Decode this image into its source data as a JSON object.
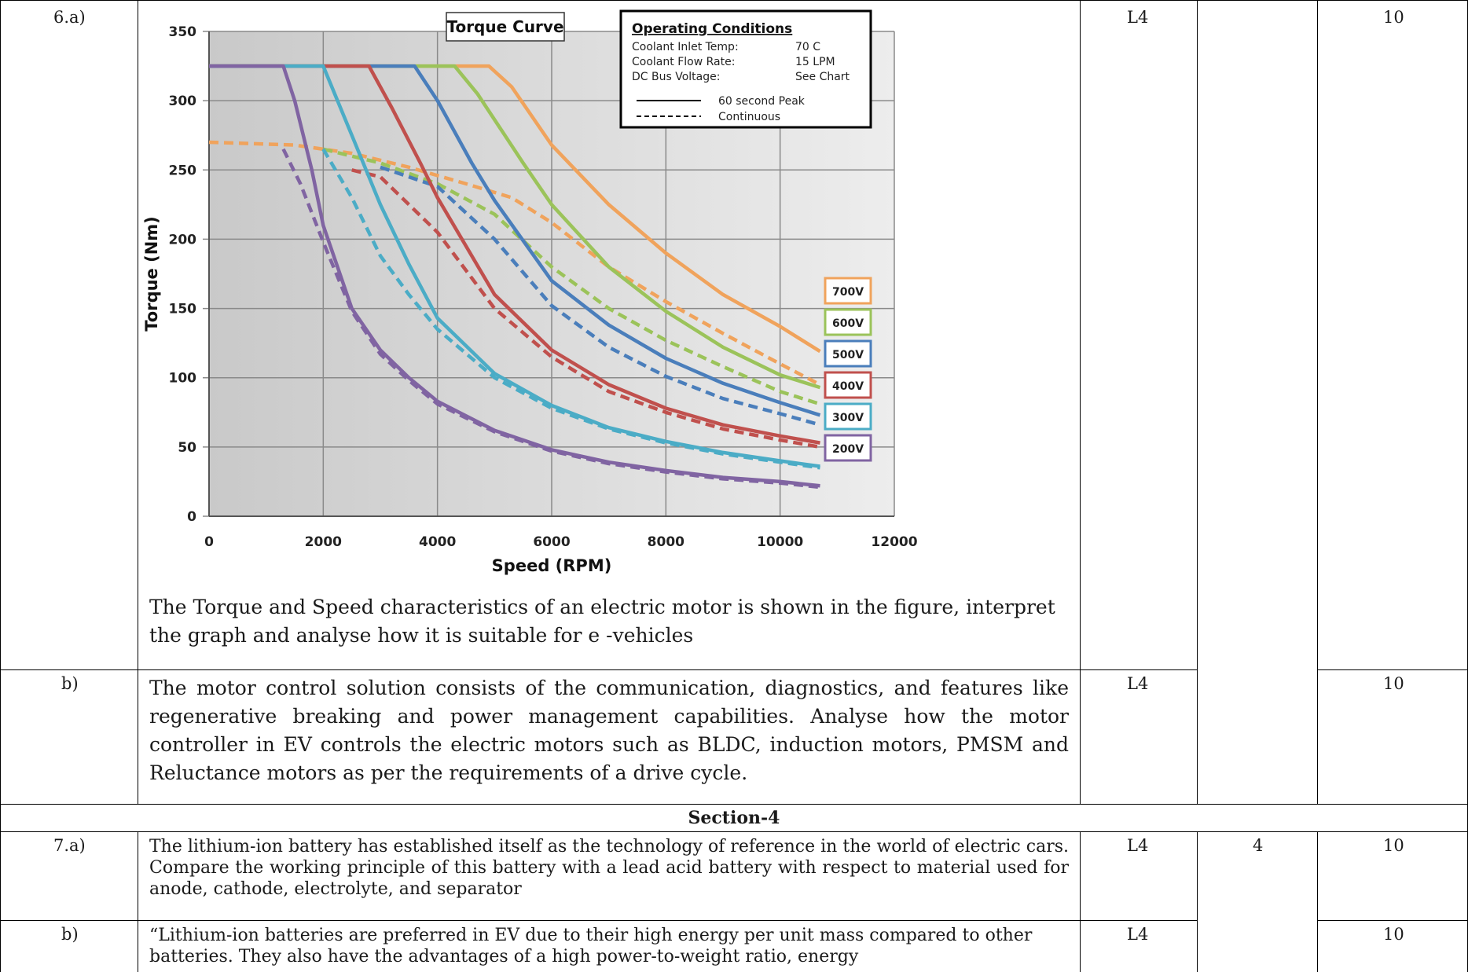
{
  "q6": {
    "number": "6.a)",
    "level": "L4",
    "marks": "10",
    "text": "The Torque and Speed characteristics of an electric motor is shown in the figure, interpret the graph and analyse how it is suitable for e -vehicles"
  },
  "q6b": {
    "number": "b)",
    "level": "L4",
    "marks": "10",
    "text": "The motor control solution consists of the communication, diagnostics, and features like regenerative breaking and power management capabilities. Analyse how the motor controller in EV controls the electric motors such as BLDC, induction motors, PMSM and Reluctance motors as per the requirements of a drive cycle."
  },
  "section": {
    "title": "Section-4"
  },
  "q7a": {
    "number": "7.a)",
    "level": "L4",
    "co": "4",
    "marks": "10",
    "text": "The lithium-ion battery has established itself as the technology of reference in the world of electric cars. Compare the working principle of this battery with a lead acid battery with respect to material used for anode, cathode, electrolyte, and separator"
  },
  "q7b": {
    "number": "b)",
    "level": "L4",
    "marks": "10",
    "text": "“Lithium-ion batteries are preferred in EV due to their high energy per unit mass compared to other batteries. They also have the advantages of a high power-to-weight ratio, energy"
  },
  "chart_data": {
    "type": "line",
    "title": "Torque Curve",
    "xlabel": "Speed (RPM)",
    "ylabel": "Torque (Nm)",
    "xlim": [
      0,
      12000
    ],
    "ylim": [
      0,
      350
    ],
    "xticks": [
      0,
      2000,
      4000,
      6000,
      8000,
      10000,
      12000
    ],
    "yticks": [
      0,
      50,
      100,
      150,
      200,
      250,
      300,
      350
    ],
    "grid": true,
    "legend": {
      "title": "Operating Conditions",
      "rows": [
        {
          "label": "Coolant Inlet Temp:",
          "value": "70  C"
        },
        {
          "label": "Coolant Flow Rate:",
          "value": "15 LPM"
        },
        {
          "label": "DC Bus Voltage:",
          "value": "See Chart"
        }
      ],
      "peak_label": "60 second Peak",
      "continuous_label": "Continuous"
    },
    "series": [
      {
        "name": "700V",
        "color": "#F0A35C",
        "peak": [
          [
            0,
            325
          ],
          [
            4900,
            325
          ],
          [
            5300,
            310
          ],
          [
            6000,
            268
          ],
          [
            7000,
            225
          ],
          [
            8000,
            190
          ],
          [
            9000,
            160
          ],
          [
            10000,
            137
          ],
          [
            10700,
            119
          ]
        ],
        "continuous": [
          [
            0,
            270
          ],
          [
            1500,
            268
          ],
          [
            2500,
            262
          ],
          [
            3500,
            252
          ],
          [
            4500,
            240
          ],
          [
            5300,
            230
          ],
          [
            6000,
            212
          ],
          [
            7000,
            180
          ],
          [
            8000,
            155
          ],
          [
            9000,
            132
          ],
          [
            10000,
            110
          ],
          [
            10700,
            95
          ]
        ]
      },
      {
        "name": "600V",
        "color": "#9BC35A",
        "peak": [
          [
            0,
            325
          ],
          [
            4300,
            325
          ],
          [
            4700,
            305
          ],
          [
            5500,
            255
          ],
          [
            6000,
            225
          ],
          [
            7000,
            180
          ],
          [
            8000,
            148
          ],
          [
            9000,
            122
          ],
          [
            10000,
            102
          ],
          [
            10700,
            93
          ]
        ],
        "continuous": [
          [
            2000,
            265
          ],
          [
            3000,
            255
          ],
          [
            4000,
            240
          ],
          [
            5000,
            218
          ],
          [
            6000,
            180
          ],
          [
            7000,
            150
          ],
          [
            8000,
            127
          ],
          [
            9000,
            108
          ],
          [
            10000,
            90
          ],
          [
            10700,
            81
          ]
        ]
      },
      {
        "name": "500V",
        "color": "#4A7EBB",
        "peak": [
          [
            0,
            325
          ],
          [
            3600,
            325
          ],
          [
            4000,
            300
          ],
          [
            4600,
            255
          ],
          [
            5000,
            228
          ],
          [
            6000,
            170
          ],
          [
            7000,
            138
          ],
          [
            8000,
            114
          ],
          [
            9000,
            96
          ],
          [
            10000,
            82
          ],
          [
            10700,
            73
          ]
        ],
        "continuous": [
          [
            3000,
            252
          ],
          [
            4000,
            238
          ],
          [
            5000,
            200
          ],
          [
            6000,
            152
          ],
          [
            7000,
            122
          ],
          [
            8000,
            101
          ],
          [
            9000,
            85
          ],
          [
            10000,
            74
          ],
          [
            10700,
            66
          ]
        ]
      },
      {
        "name": "400V",
        "color": "#C0504D",
        "peak": [
          [
            0,
            325
          ],
          [
            2800,
            325
          ],
          [
            3200,
            295
          ],
          [
            3700,
            255
          ],
          [
            4000,
            230
          ],
          [
            5000,
            160
          ],
          [
            6000,
            120
          ],
          [
            7000,
            95
          ],
          [
            8000,
            78
          ],
          [
            9000,
            66
          ],
          [
            10000,
            58
          ],
          [
            10700,
            53
          ]
        ],
        "continuous": [
          [
            2500,
            250
          ],
          [
            3000,
            245
          ],
          [
            4000,
            205
          ],
          [
            5000,
            150
          ],
          [
            6000,
            115
          ],
          [
            7000,
            90
          ],
          [
            8000,
            75
          ],
          [
            9000,
            63
          ],
          [
            10000,
            55
          ],
          [
            10700,
            50
          ]
        ]
      },
      {
        "name": "300V",
        "color": "#4BACC6",
        "peak": [
          [
            0,
            325
          ],
          [
            2000,
            325
          ],
          [
            2500,
            275
          ],
          [
            3000,
            225
          ],
          [
            3500,
            182
          ],
          [
            4000,
            143
          ],
          [
            5000,
            103
          ],
          [
            6000,
            80
          ],
          [
            7000,
            64
          ],
          [
            8000,
            54
          ],
          [
            9000,
            46
          ],
          [
            10000,
            40
          ],
          [
            10700,
            36
          ]
        ],
        "continuous": [
          [
            2000,
            265
          ],
          [
            2500,
            230
          ],
          [
            3000,
            188
          ],
          [
            3500,
            160
          ],
          [
            4000,
            135
          ],
          [
            5000,
            100
          ],
          [
            6000,
            78
          ],
          [
            7000,
            63
          ],
          [
            8000,
            53
          ],
          [
            9000,
            45
          ],
          [
            10000,
            39
          ],
          [
            10700,
            35
          ]
        ]
      },
      {
        "name": "200V",
        "color": "#8064A2",
        "peak": [
          [
            0,
            325
          ],
          [
            1300,
            325
          ],
          [
            1500,
            300
          ],
          [
            1800,
            250
          ],
          [
            2000,
            210
          ],
          [
            2500,
            150
          ],
          [
            3000,
            120
          ],
          [
            3500,
            100
          ],
          [
            4000,
            83
          ],
          [
            5000,
            62
          ],
          [
            6000,
            48
          ],
          [
            7000,
            39
          ],
          [
            8000,
            33
          ],
          [
            9000,
            28
          ],
          [
            10000,
            25
          ],
          [
            10700,
            22
          ]
        ],
        "continuous": [
          [
            1300,
            265
          ],
          [
            1600,
            240
          ],
          [
            2000,
            198
          ],
          [
            2500,
            148
          ],
          [
            3000,
            117
          ],
          [
            3500,
            98
          ],
          [
            4000,
            81
          ],
          [
            5000,
            61
          ],
          [
            6000,
            47
          ],
          [
            7000,
            38
          ],
          [
            8000,
            32
          ],
          [
            9000,
            27
          ],
          [
            10000,
            24
          ],
          [
            10700,
            21
          ]
        ]
      }
    ]
  }
}
